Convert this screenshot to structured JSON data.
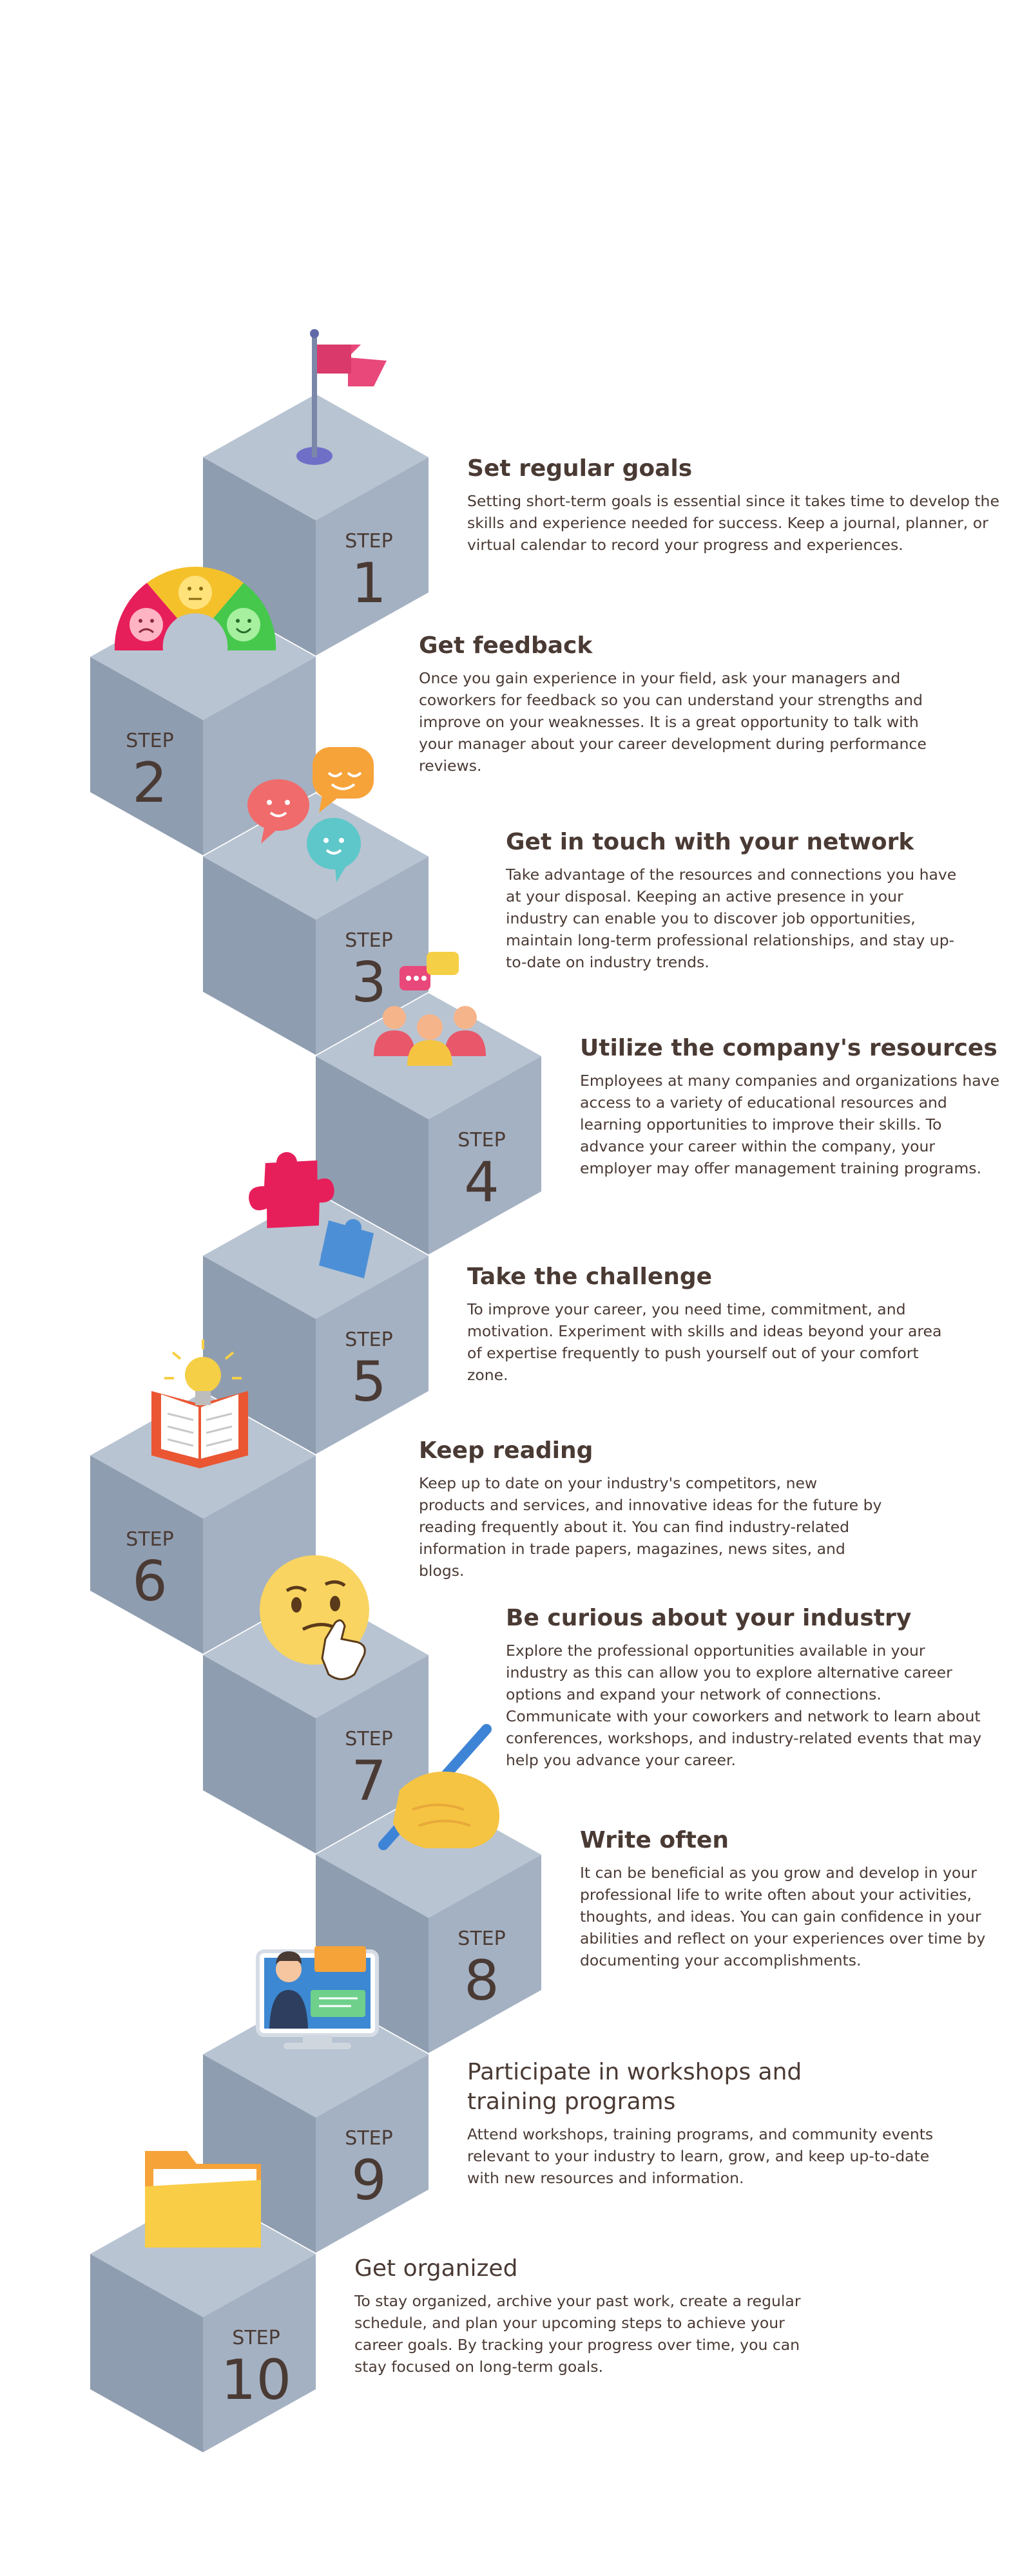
{
  "step_word": "STEP",
  "steps": [
    {
      "number": "1",
      "title": "Set regular goals",
      "icon": "flag-icon",
      "body": "Setting short-term goals is essential since it takes time to develop the skills and experience needed for success. Keep a journal, planner, or virtual calendar to record your progress and experiences."
    },
    {
      "number": "2",
      "title": "Get feedback",
      "icon": "feedback-meter-icon",
      "body": "Once you gain experience in your field, ask your managers and coworkers for feedback so you can understand your strengths and improve on your weaknesses. It is a great opportunity to talk with your manager about your career development during performance reviews."
    },
    {
      "number": "3",
      "title": "Get in touch with your network",
      "icon": "chat-bubbles-icon",
      "body": "Take advantage of the resources and connections you have at your disposal. Keeping an active presence in your industry can enable you to discover job opportunities, maintain long-term professional relationships, and stay up-to-date on industry trends."
    },
    {
      "number": "4",
      "title": "Utilize the company's resources",
      "icon": "team-icon",
      "body": "Employees at many companies and organizations have access to a variety of educational resources and learning opportunities to improve their skills. To advance your career within the company, your employer may offer management training programs."
    },
    {
      "number": "5",
      "title": "Take the challenge",
      "icon": "puzzle-icon",
      "body": "To improve your career, you need time, commitment, and motivation.  Experiment with skills and ideas beyond your area of expertise frequently to push yourself out of your comfort zone."
    },
    {
      "number": "6",
      "title": "Keep reading",
      "icon": "book-lightbulb-icon",
      "body": "Keep up to date on your industry's competitors, new products and services, and innovative ideas for the future by reading frequently about it. You can find industry-related information in trade papers, magazines, news sites, and blogs."
    },
    {
      "number": "7",
      "title": "Be curious about your industry",
      "icon": "thinking-face-icon",
      "body": "Explore the professional opportunities available in your industry as this can allow you to explore alternative career options and expand your network of connections. Communicate with your coworkers and network to learn about conferences, workshops, and industry-related events that may help you advance your career."
    },
    {
      "number": "8",
      "title": "Write often",
      "icon": "writing-hand-icon",
      "body": "It can be beneficial as you grow and develop in your professional life to write often about your activities, thoughts, and ideas. You can gain confidence in your abilities and reflect on your experiences over time by documenting your accomplishments."
    },
    {
      "number": "9",
      "title": "Participate in workshops and training programs",
      "icon": "video-call-icon",
      "body": "Attend workshops, training programs, and community events relevant to your industry to learn, grow, and keep up-to-date with new resources and information."
    },
    {
      "number": "10",
      "title": "Get organized",
      "icon": "folder-icon",
      "body": "To stay organized, archive your past work, create a regular schedule, and plan your upcoming steps to achieve your career goals. By tracking your progress over time, you can stay focused on long-term goals."
    }
  ],
  "colors": {
    "cube_top": "#b8c4d2",
    "cube_left": "#8f9db0",
    "cube_right": "#a4b1c2",
    "text": "#4a3a34",
    "accent_pink": "#e8487a",
    "accent_yellow": "#f5cf45",
    "accent_blue": "#4d8fd6"
  }
}
